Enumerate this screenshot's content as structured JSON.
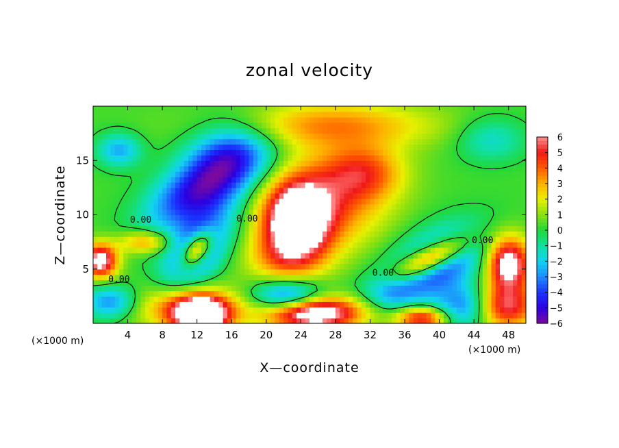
{
  "chart_data": {
    "type": "heatmap",
    "title": "zonal velocity",
    "xlabel": "X—coordinate",
    "ylabel": "Z—coordinate",
    "x_unit_label": "(×1000 m)",
    "x_ticks": [
      4,
      8,
      12,
      16,
      20,
      24,
      28,
      32,
      36,
      40,
      44,
      48
    ],
    "y_ticks": [
      5,
      10,
      15
    ],
    "xlim": [
      0,
      50
    ],
    "ylim": [
      0,
      20
    ],
    "colorbar": {
      "ticks": [
        6,
        5,
        4,
        3,
        2,
        1,
        0,
        -1,
        -2,
        -3,
        -4,
        -5,
        -6
      ],
      "range": [
        -6,
        6
      ]
    },
    "contour_labels": [
      {
        "text": "0.00",
        "x": 5.5,
        "y": 9.5
      },
      {
        "text": "0.00",
        "x": 3.0,
        "y": 4.0
      },
      {
        "text": "0.00",
        "x": 17.8,
        "y": 9.6
      },
      {
        "text": "0.00",
        "x": 33.5,
        "y": 4.6
      },
      {
        "text": "0.00",
        "x": 45.0,
        "y": 7.6
      }
    ],
    "features": [
      {
        "kind": "positive",
        "value": 7.5,
        "x": 23.5,
        "y": 9.5,
        "rx": 3.8,
        "ry": 3.5,
        "angle": 0
      },
      {
        "kind": "positive",
        "value": 3.5,
        "x": 27.5,
        "y": 11.5,
        "rx": 6.5,
        "ry": 4.5,
        "angle": 0
      },
      {
        "kind": "positive",
        "value": 3.0,
        "x": 31.5,
        "y": 14.0,
        "rx": 4.5,
        "ry": 2.5,
        "angle": 0
      },
      {
        "kind": "positive",
        "value": 2.5,
        "x": 22.0,
        "y": 6.0,
        "rx": 4.5,
        "ry": 2.5,
        "angle": 0
      },
      {
        "kind": "positive",
        "value": 2.0,
        "x": 27.0,
        "y": 18.0,
        "rx": 14.0,
        "ry": 2.0,
        "angle": 0
      },
      {
        "kind": "negative",
        "value": -5.5,
        "x": 12.5,
        "y": 12.5,
        "rx": 6.5,
        "ry": 2.8,
        "angle": 25
      },
      {
        "kind": "negative",
        "value": -3.0,
        "x": 16.0,
        "y": 16.0,
        "rx": 5.0,
        "ry": 3.0,
        "angle": 0
      },
      {
        "kind": "positive",
        "value": 7.0,
        "x": 12.0,
        "y": 6.8,
        "rx": 2.2,
        "ry": 1.2,
        "angle": 40
      },
      {
        "kind": "negative",
        "value": -5.0,
        "x": 12.0,
        "y": 6.8,
        "rx": 4.5,
        "ry": 2.5,
        "angle": 40
      },
      {
        "kind": "positive",
        "value": 7.0,
        "x": 0.8,
        "y": 5.8,
        "rx": 2.0,
        "ry": 1.5,
        "angle": 0
      },
      {
        "kind": "positive",
        "value": 3.5,
        "x": 6.0,
        "y": 7.5,
        "rx": 3.0,
        "ry": 1.0,
        "angle": 0
      },
      {
        "kind": "positive",
        "value": 8.0,
        "x": 12.5,
        "y": 0.8,
        "rx": 3.0,
        "ry": 1.5,
        "angle": 0
      },
      {
        "kind": "positive",
        "value": 4.0,
        "x": 11.0,
        "y": 1.5,
        "rx": 6.0,
        "ry": 2.0,
        "angle": 0
      },
      {
        "kind": "negative",
        "value": -3.5,
        "x": 2.0,
        "y": 2.0,
        "rx": 3.0,
        "ry": 1.5,
        "angle": 0
      },
      {
        "kind": "negative",
        "value": -5.0,
        "x": 22.5,
        "y": 2.5,
        "rx": 4.0,
        "ry": 1.5,
        "angle": 0
      },
      {
        "kind": "positive",
        "value": 8.0,
        "x": 25.5,
        "y": 1.0,
        "rx": 5.5,
        "ry": 1.5,
        "angle": 0
      },
      {
        "kind": "positive",
        "value": 7.0,
        "x": 39.0,
        "y": 6.0,
        "rx": 4.5,
        "ry": 1.2,
        "angle": 20
      },
      {
        "kind": "negative",
        "value": -5.0,
        "x": 39.5,
        "y": 5.5,
        "rx": 6.0,
        "ry": 2.8,
        "angle": 20
      },
      {
        "kind": "positive",
        "value": 7.0,
        "x": 48.0,
        "y": 5.5,
        "rx": 2.5,
        "ry": 2.5,
        "angle": 0
      },
      {
        "kind": "positive",
        "value": 6.0,
        "x": 47.0,
        "y": 1.5,
        "rx": 4.0,
        "ry": 2.0,
        "angle": 0
      },
      {
        "kind": "positive",
        "value": 5.5,
        "x": 38.0,
        "y": 0.5,
        "rx": 3.0,
        "ry": 1.0,
        "angle": 0
      },
      {
        "kind": "negative",
        "value": -5.0,
        "x": 43.5,
        "y": 1.5,
        "rx": 3.5,
        "ry": 2.0,
        "angle": 0
      },
      {
        "kind": "negative",
        "value": -3.0,
        "x": 3.0,
        "y": 16.0,
        "rx": 2.5,
        "ry": 1.5,
        "angle": 0
      },
      {
        "kind": "negative",
        "value": -2.0,
        "x": 46.0,
        "y": 17.0,
        "rx": 4.0,
        "ry": 2.0,
        "angle": 0
      },
      {
        "kind": "negative",
        "value": -2.0,
        "x": 34.0,
        "y": 3.0,
        "rx": 3.0,
        "ry": 1.5,
        "angle": 0
      }
    ]
  }
}
